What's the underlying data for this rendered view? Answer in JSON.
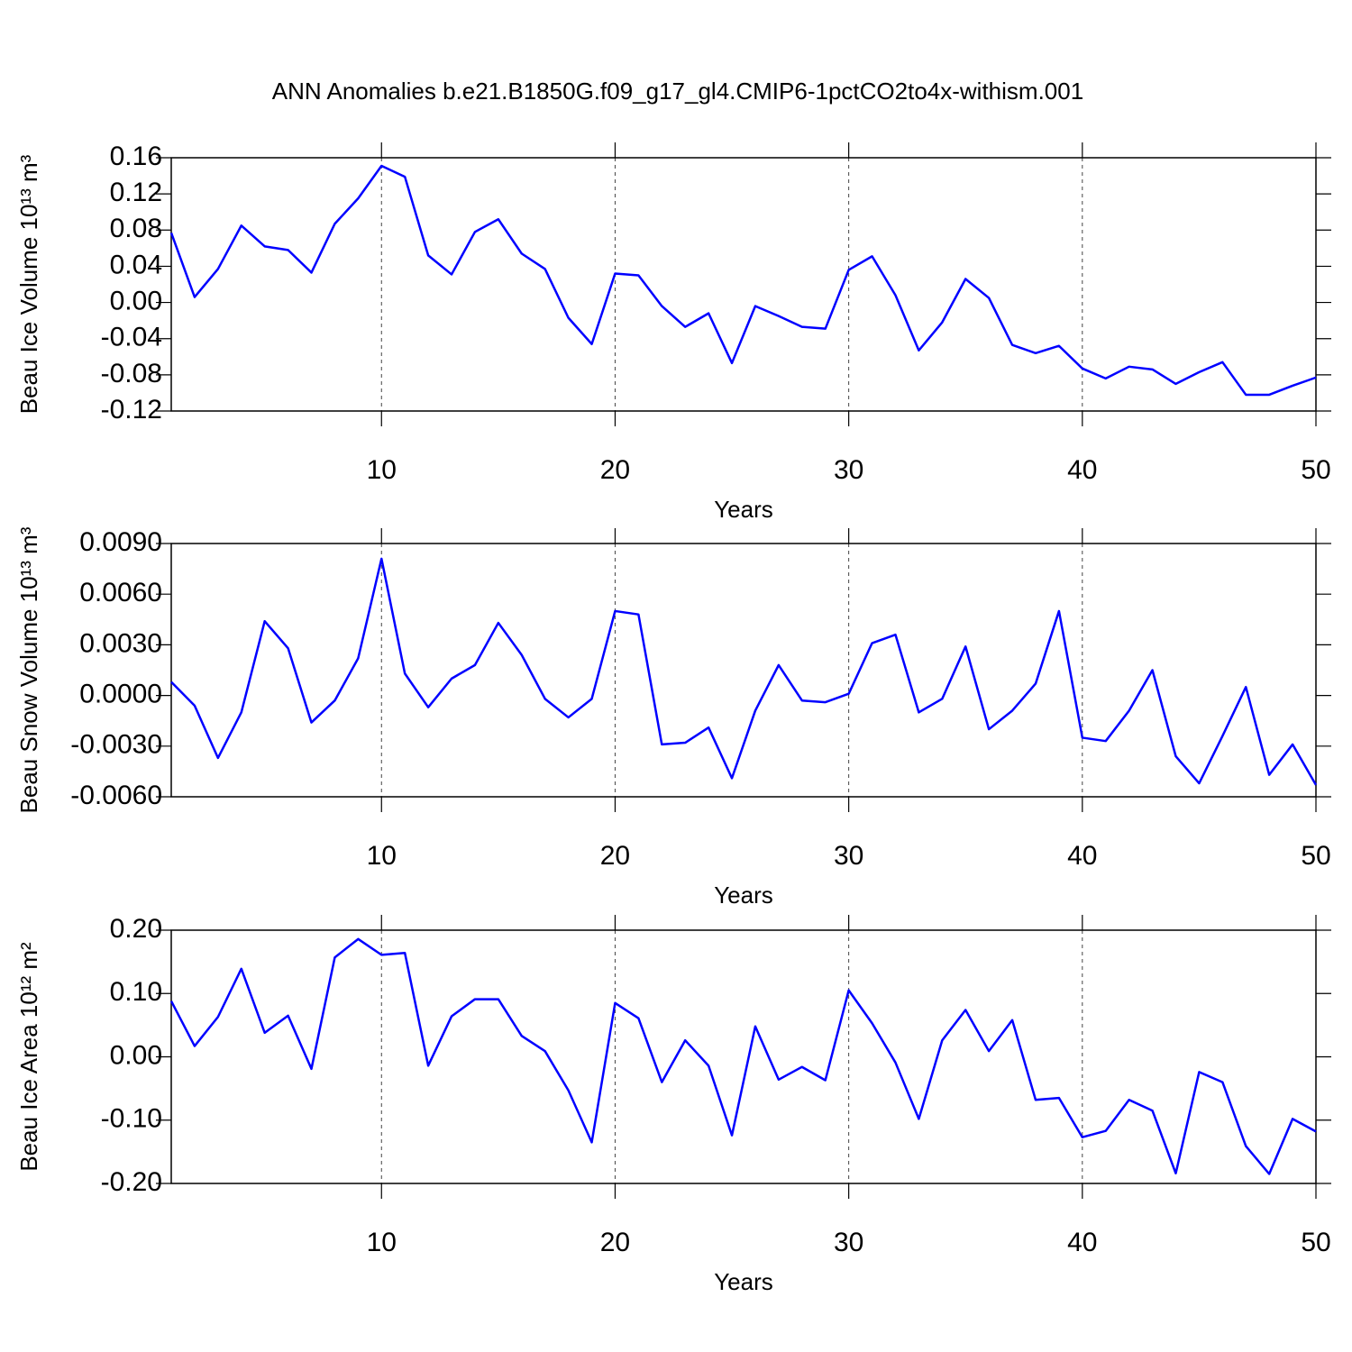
{
  "chart_data": [
    {
      "type": "line",
      "title": "ANN Anomalies b.e21.B1850G.f09_g17_gl4.CMIP6-1pctCO2to4x-withism.001",
      "xlabel": "Years",
      "ylabel": "Beau Ice Volume 10¹³ m³",
      "x": [
        1,
        2,
        3,
        4,
        5,
        6,
        7,
        8,
        9,
        10,
        11,
        12,
        13,
        14,
        15,
        16,
        17,
        18,
        19,
        20,
        21,
        22,
        23,
        24,
        25,
        26,
        27,
        28,
        29,
        30,
        31,
        32,
        33,
        34,
        35,
        36,
        37,
        38,
        39,
        40,
        41,
        42,
        43,
        44,
        45,
        46,
        47,
        48,
        49,
        50
      ],
      "series": [
        {
          "color": "#0000ff",
          "values": [
            0.077,
            0.006,
            0.037,
            0.085,
            0.062,
            0.058,
            0.033,
            0.087,
            0.115,
            0.151,
            0.139,
            0.052,
            0.031,
            0.078,
            0.092,
            0.054,
            0.037,
            -0.017,
            -0.046,
            0.032,
            0.03,
            -0.004,
            -0.027,
            -0.012,
            -0.067,
            -0.004,
            -0.015,
            -0.027,
            -0.029,
            0.036,
            0.051,
            0.008,
            -0.053,
            -0.022,
            0.026,
            0.005,
            -0.047,
            -0.056,
            -0.048,
            -0.073,
            -0.084,
            -0.071,
            -0.074,
            -0.09,
            -0.077,
            -0.066,
            -0.102,
            -0.102,
            -0.092,
            -0.083
          ]
        }
      ],
      "xlim": [
        1,
        50
      ],
      "xticks": [
        10,
        20,
        30,
        40,
        50
      ],
      "ylim": [
        -0.12,
        0.16
      ],
      "yticks": [
        -0.12,
        -0.08,
        -0.04,
        {
          "value": 0,
          "label": "0.00"
        },
        0.04,
        0.08,
        0.12,
        0.16
      ],
      "grid": true
    },
    {
      "type": "line",
      "xlabel": "Years",
      "ylabel": "Beau Snow Volume 10¹³ m³",
      "x": [
        1,
        2,
        3,
        4,
        5,
        6,
        7,
        8,
        9,
        10,
        11,
        12,
        13,
        14,
        15,
        16,
        17,
        18,
        19,
        20,
        21,
        22,
        23,
        24,
        25,
        26,
        27,
        28,
        29,
        30,
        31,
        32,
        33,
        34,
        35,
        36,
        37,
        38,
        39,
        40,
        41,
        42,
        43,
        44,
        45,
        46,
        47,
        48,
        49,
        50
      ],
      "series": [
        {
          "color": "#0000ff",
          "values": [
            0.0008,
            -0.0006,
            -0.0037,
            -0.001,
            0.0044,
            0.0028,
            -0.0016,
            -0.0003,
            0.0022,
            0.0081,
            0.0013,
            -0.0007,
            0.001,
            0.0018,
            0.0043,
            0.0024,
            -0.0002,
            -0.0013,
            -0.0002,
            0.005,
            0.0048,
            -0.0029,
            -0.0028,
            -0.0019,
            -0.0049,
            -0.0009,
            0.0018,
            -0.0003,
            -0.0004,
            0.0001,
            0.0031,
            0.0036,
            -0.001,
            -0.0002,
            0.0029,
            -0.002,
            -0.0009,
            0.0007,
            0.005,
            -0.0025,
            -0.0027,
            -0.0009,
            0.0015,
            -0.0036,
            -0.0052,
            -0.0024,
            0.0005,
            -0.0047,
            -0.0029,
            -0.0053
          ]
        }
      ],
      "xlim": [
        1,
        50
      ],
      "xticks": [
        10,
        20,
        30,
        40,
        50
      ],
      "ylim": [
        -0.006,
        0.009
      ],
      "yticks": [
        {
          "value": -0.006,
          "label": "-0.0060"
        },
        {
          "value": -0.003,
          "label": "-0.0030"
        },
        {
          "value": 0,
          "label": "0.0000"
        },
        {
          "value": 0.003,
          "label": "0.0030"
        },
        {
          "value": 0.006,
          "label": "0.0060"
        },
        {
          "value": 0.009,
          "label": "0.0090"
        }
      ],
      "grid": true
    },
    {
      "type": "line",
      "xlabel": "Years",
      "ylabel": "Beau Ice Area 10¹² m²",
      "x": [
        1,
        2,
        3,
        4,
        5,
        6,
        7,
        8,
        9,
        10,
        11,
        12,
        13,
        14,
        15,
        16,
        17,
        18,
        19,
        20,
        21,
        22,
        23,
        24,
        25,
        26,
        27,
        28,
        29,
        30,
        31,
        32,
        33,
        34,
        35,
        36,
        37,
        38,
        39,
        40,
        41,
        42,
        43,
        44,
        45,
        46,
        47,
        48,
        49,
        50
      ],
      "series": [
        {
          "color": "#0000ff",
          "values": [
            0.088,
            0.017,
            0.063,
            0.139,
            0.038,
            0.065,
            -0.019,
            0.157,
            0.186,
            0.161,
            0.164,
            -0.014,
            0.064,
            0.091,
            0.091,
            0.033,
            0.009,
            -0.053,
            -0.135,
            0.085,
            0.061,
            -0.04,
            0.026,
            -0.014,
            -0.124,
            0.048,
            -0.036,
            -0.016,
            -0.037,
            0.105,
            0.053,
            -0.009,
            -0.098,
            0.026,
            0.074,
            0.009,
            0.058,
            -0.068,
            -0.065,
            -0.127,
            -0.117,
            -0.068,
            -0.085,
            -0.184,
            -0.024,
            -0.04,
            -0.141,
            -0.185,
            -0.098,
            -0.118
          ]
        }
      ],
      "xlim": [
        1,
        50
      ],
      "xticks": [
        10,
        20,
        30,
        40,
        50
      ],
      "ylim": [
        -0.2,
        0.2
      ],
      "yticks": [
        {
          "value": -0.2,
          "label": "-0.20"
        },
        {
          "value": -0.1,
          "label": "-0.10"
        },
        {
          "value": 0,
          "label": "0.00"
        },
        {
          "value": 0.1,
          "label": "0.10"
        },
        {
          "value": 0.2,
          "label": "0.20"
        }
      ],
      "grid": true
    }
  ]
}
